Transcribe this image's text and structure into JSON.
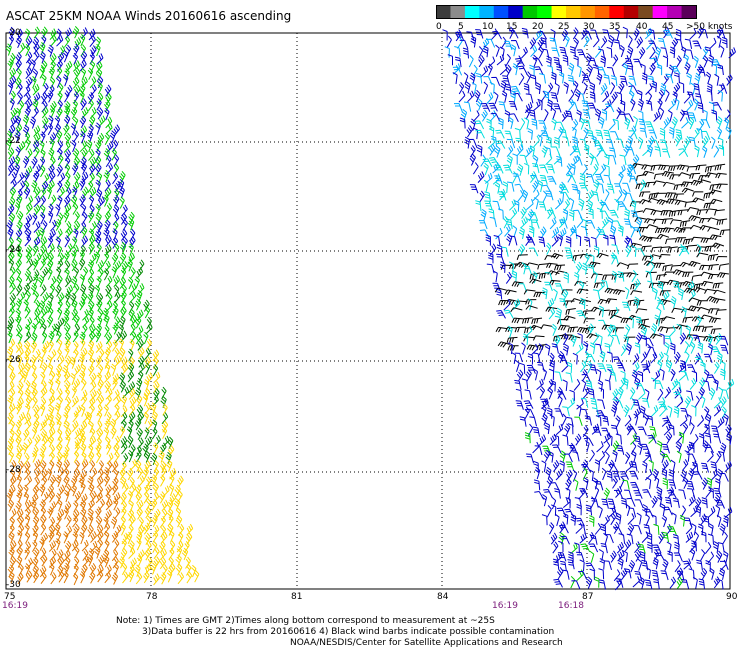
{
  "title": "ASCAT 25KM NOAA Winds 20160616 ascending",
  "colorbar": {
    "labels": [
      "0",
      "5",
      "10",
      "15",
      "20",
      "25",
      "30",
      "35",
      "40",
      "45",
      ">50 knots"
    ],
    "colors": [
      "#3c3c3c",
      "#8c8c8c",
      "#00ffff",
      "#00b4ff",
      "#0050ff",
      "#0000c8",
      "#00c800",
      "#00ff00",
      "#ffff00",
      "#ffc800",
      "#ff9600",
      "#ff6400",
      "#ff0000",
      "#b40000",
      "#7a4a20",
      "#ff00ff",
      "#b400b4",
      "#5a005a"
    ]
  },
  "axes": {
    "lon_labels": [
      "75",
      "78",
      "81",
      "84",
      "87",
      "90"
    ],
    "lat_labels": [
      "-20",
      "-22",
      "-24",
      "-26",
      "-28",
      "-30"
    ]
  },
  "times": {
    "left": "16:19",
    "mid": "16:19",
    "right": "16:18"
  },
  "notes": {
    "line1": "Note: 1) Times are GMT 2)Times along bottom correspond to measurement at ~25S",
    "line2": "3)Data buffer is 22 hrs from 20160616 4) Black wind barbs indicate possible contamination",
    "line3": "NOAA/NESDIS/Center for Satellite Applications and Research"
  },
  "colors": {
    "grid": "#000000",
    "barb_black": "#000000",
    "barb_blue": "#0000cc",
    "barb_lightblue": "#00aaff",
    "barb_cyan": "#00dddd",
    "barb_green": "#00cc00",
    "barb_darkgreen": "#008800",
    "barb_yellow": "#ffd700",
    "barb_orange": "#e07800"
  }
}
